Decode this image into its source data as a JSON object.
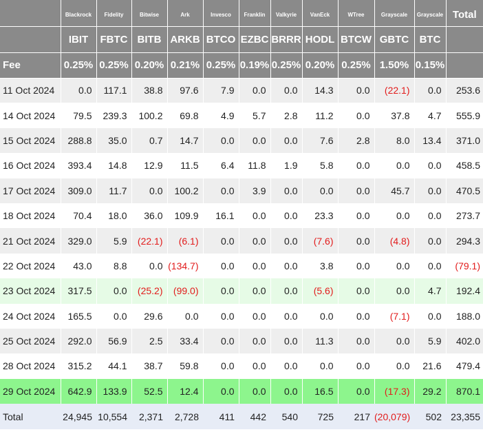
{
  "header": {
    "issuers": [
      "Blackrock",
      "Fidelity",
      "Bitwise",
      "Ark",
      "Invesco",
      "Franklin",
      "Valkyrie",
      "VanEck",
      "WTree",
      "Grayscale",
      "Grayscale"
    ],
    "total_label": "Total",
    "tickers": [
      "IBIT",
      "FBTC",
      "BITB",
      "ARKB",
      "BTCO",
      "EZBC",
      "BRRR",
      "HODL",
      "BTCW",
      "GBTC",
      "BTC"
    ],
    "fee_label": "Fee",
    "fees": [
      "0.25%",
      "0.25%",
      "0.20%",
      "0.21%",
      "0.25%",
      "0.19%",
      "0.25%",
      "0.20%",
      "0.25%",
      "1.50%",
      "0.15%"
    ]
  },
  "rows": [
    {
      "date": "11 Oct 2024",
      "values": [
        "0.0",
        "117.1",
        "38.8",
        "97.6",
        "7.9",
        "0.0",
        "0.0",
        "14.3",
        "0.0",
        "(22.1)",
        "0.0"
      ],
      "total": "253.6",
      "style": "odd"
    },
    {
      "date": "14 Oct 2024",
      "values": [
        "79.5",
        "239.3",
        "100.2",
        "69.8",
        "4.9",
        "5.7",
        "2.8",
        "11.2",
        "0.0",
        "37.8",
        "4.7"
      ],
      "total": "555.9",
      "style": "even"
    },
    {
      "date": "15 Oct 2024",
      "values": [
        "288.8",
        "35.0",
        "0.7",
        "14.7",
        "0.0",
        "0.0",
        "0.0",
        "7.6",
        "2.8",
        "8.0",
        "13.4"
      ],
      "total": "371.0",
      "style": "odd"
    },
    {
      "date": "16 Oct 2024",
      "values": [
        "393.4",
        "14.8",
        "12.9",
        "11.5",
        "6.4",
        "11.8",
        "1.9",
        "5.8",
        "0.0",
        "0.0",
        "0.0"
      ],
      "total": "458.5",
      "style": "even"
    },
    {
      "date": "17 Oct 2024",
      "values": [
        "309.0",
        "11.7",
        "0.0",
        "100.2",
        "0.0",
        "3.9",
        "0.0",
        "0.0",
        "0.0",
        "45.7",
        "0.0"
      ],
      "total": "470.5",
      "style": "odd"
    },
    {
      "date": "18 Oct 2024",
      "values": [
        "70.4",
        "18.0",
        "36.0",
        "109.9",
        "16.1",
        "0.0",
        "0.0",
        "23.3",
        "0.0",
        "0.0",
        "0.0"
      ],
      "total": "273.7",
      "style": "even"
    },
    {
      "date": "21 Oct 2024",
      "values": [
        "329.0",
        "5.9",
        "(22.1)",
        "(6.1)",
        "0.0",
        "0.0",
        "0.0",
        "(7.6)",
        "0.0",
        "(4.8)",
        "0.0"
      ],
      "total": "294.3",
      "style": "odd"
    },
    {
      "date": "22 Oct 2024",
      "values": [
        "43.0",
        "8.8",
        "0.0",
        "(134.7)",
        "0.0",
        "0.0",
        "0.0",
        "3.8",
        "0.0",
        "0.0",
        "0.0"
      ],
      "total": "(79.1)",
      "style": "even"
    },
    {
      "date": "23 Oct 2024",
      "values": [
        "317.5",
        "0.0",
        "(25.2)",
        "(99.0)",
        "0.0",
        "0.0",
        "0.0",
        "(5.6)",
        "0.0",
        "0.0",
        "4.7"
      ],
      "total": "192.4",
      "style": "light-green"
    },
    {
      "date": "24 Oct 2024",
      "values": [
        "165.5",
        "0.0",
        "29.6",
        "0.0",
        "0.0",
        "0.0",
        "0.0",
        "0.0",
        "0.0",
        "(7.1)",
        "0.0"
      ],
      "total": "188.0",
      "style": "even"
    },
    {
      "date": "25 Oct 2024",
      "values": [
        "292.0",
        "56.9",
        "2.5",
        "33.4",
        "0.0",
        "0.0",
        "0.0",
        "11.3",
        "0.0",
        "0.0",
        "5.9"
      ],
      "total": "402.0",
      "style": "odd"
    },
    {
      "date": "28 Oct 2024",
      "values": [
        "315.2",
        "44.1",
        "38.7",
        "59.8",
        "0.0",
        "0.0",
        "0.0",
        "0.0",
        "0.0",
        "0.0",
        "21.6"
      ],
      "total": "479.4",
      "style": "even"
    },
    {
      "date": "29 Oct 2024",
      "values": [
        "642.9",
        "133.9",
        "52.5",
        "12.4",
        "0.0",
        "0.0",
        "0.0",
        "16.5",
        "0.0",
        "(17.3)",
        "29.2"
      ],
      "total": "870.1",
      "style": "bright-green"
    }
  ],
  "totals": {
    "label": "Total",
    "values": [
      "24,945",
      "10,554",
      "2,371",
      "2,728",
      "411",
      "442",
      "540",
      "725",
      "217",
      "(20,079)",
      "502"
    ],
    "total": "23,355"
  },
  "colors": {
    "header_bg": "#8a8a8a",
    "negative": "#e21b1b",
    "highlight_light": "#e6fbe6",
    "highlight_bright": "#8df58d",
    "total_row_bg": "#e7ecf6"
  }
}
